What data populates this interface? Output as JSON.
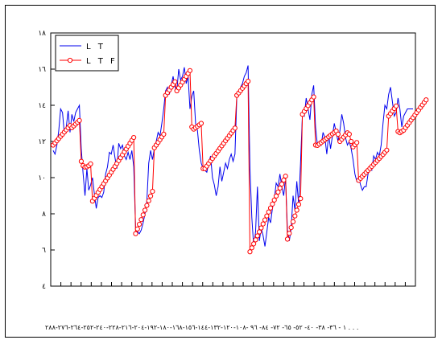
{
  "chart_data": {
    "type": "line",
    "y_tick_labels": [
      "٤",
      "٦",
      "٨",
      "١٠",
      "١٢",
      "١٤",
      "١٦",
      "١٨"
    ],
    "ylim": [
      4,
      18
    ],
    "y_ticks": [
      4,
      6,
      8,
      10,
      12,
      14,
      16,
      18
    ],
    "x_axis_caption": "١ - ٣٦- ٣٨- ٤٠- ٥٢- ٦٥- ٧٢- ٨٤- ٩٦ -١٠٨-١٢٠-١٣٢-١٤٤-١٥٦-١٦٨-١٨٠-١٩٢-٢٠٤-٢١٦-٢٢٨-٢٤٠-٢٥٢-٢٦٤-٢٧٦-٢٨٨ . . .",
    "grid": false,
    "legend_position": "top-left",
    "series": [
      {
        "name": "L T",
        "color": "#0000ee",
        "marker": "none",
        "values": [
          11.5,
          11.3,
          11.8,
          12.6,
          13.8,
          13.6,
          12.4,
          12.8,
          13.7,
          12.5,
          13.5,
          13.1,
          13.6,
          13.8,
          14.0,
          11.6,
          10.2,
          9.0,
          10.5,
          9.3,
          9.6,
          10.0,
          9.1,
          8.3,
          8.9,
          9.0,
          8.9,
          9.2,
          10.2,
          10.6,
          11.4,
          11.3,
          11.8,
          11.1,
          10.5,
          11.9,
          11.6,
          11.8,
          11.2,
          11.0,
          11.4,
          11.0,
          11.5,
          10.6,
          7.2,
          7.0,
          6.9,
          7.1,
          7.5,
          8.0,
          8.7,
          10.8,
          11.5,
          11.0,
          11.6,
          12.0,
          12.5,
          12.3,
          13.0,
          13.8,
          14.8,
          15.0,
          14.6,
          15.1,
          15.6,
          15.0,
          14.8,
          16.0,
          15.4,
          15.6,
          16.1,
          15.2,
          15.6,
          13.8,
          14.5,
          14.8,
          13.0,
          12.6,
          11.5,
          10.8,
          10.5,
          10.4,
          10.3,
          10.8,
          11.2,
          10.0,
          9.6,
          9.0,
          9.5,
          10.6,
          9.8,
          10.3,
          10.8,
          10.5,
          11.0,
          11.3,
          10.9,
          11.3,
          14.5,
          14.6,
          15.0,
          15.2,
          15.6,
          15.8,
          16.2,
          10.5,
          7.8,
          6.2,
          7.0,
          9.5,
          6.5,
          7.2,
          6.8,
          6.2,
          7.0,
          7.8,
          7.5,
          8.3,
          8.8,
          9.7,
          9.5,
          10.2,
          9.5,
          9.0,
          10.0,
          7.1,
          6.5,
          7.2,
          9.0,
          8.2,
          9.8,
          8.5,
          10.8,
          13.5,
          13.4,
          14.4,
          13.8,
          13.2,
          14.6,
          15.1,
          12.8,
          11.8,
          12.0,
          11.8,
          12.5,
          12.2,
          11.3,
          12.4,
          11.6,
          12.3,
          13.0,
          12.5,
          12.0,
          12.6,
          13.5,
          13.0,
          12.2,
          11.8,
          12.0,
          11.6,
          11.0,
          10.2,
          9.8,
          10.0,
          9.6,
          9.3,
          9.5,
          9.5,
          10.2,
          10.5,
          10.4,
          11.2,
          11.0,
          11.4,
          11.2,
          11.8,
          13.0,
          14.0,
          13.8,
          14.6,
          15.0,
          14.2,
          13.4,
          13.6,
          14.4,
          13.8,
          12.8,
          13.4,
          13.6,
          13.8,
          13.8,
          13.8,
          13.8
        ]
      },
      {
        "name": "L T F",
        "color": "#ff0000",
        "marker": "open-circle",
        "values": [
          11.8,
          11.92,
          12.04,
          12.16,
          12.28,
          12.4,
          12.52,
          12.64,
          12.76,
          12.88,
          12.76,
          12.86,
          12.96,
          13.06,
          13.16,
          10.9,
          10.66,
          10.58,
          10.6,
          10.66,
          10.76,
          8.7,
          8.86,
          9.02,
          9.18,
          9.34,
          9.5,
          9.66,
          9.82,
          9.98,
          10.14,
          10.3,
          10.46,
          10.62,
          10.78,
          10.94,
          11.1,
          11.26,
          11.42,
          11.58,
          11.74,
          11.9,
          12.06,
          12.22,
          6.9,
          7.16,
          7.42,
          7.68,
          7.94,
          8.2,
          8.46,
          8.72,
          8.98,
          9.24,
          11.65,
          11.8,
          11.95,
          12.1,
          12.25,
          12.4,
          14.55,
          14.7,
          14.85,
          15.0,
          15.15,
          15.3,
          14.8,
          14.96,
          15.12,
          15.28,
          15.44,
          15.6,
          15.76,
          15.92,
          12.8,
          12.68,
          12.76,
          12.84,
          12.92,
          13.0,
          10.5,
          10.5,
          10.64,
          10.78,
          10.92,
          11.06,
          11.2,
          11.34,
          11.48,
          11.62,
          11.76,
          11.9,
          12.04,
          12.18,
          12.32,
          12.46,
          12.6,
          12.74,
          14.55,
          14.68,
          14.81,
          14.94,
          15.07,
          15.2,
          15.33,
          5.9,
          6.12,
          6.34,
          6.56,
          6.78,
          7.0,
          7.22,
          7.44,
          7.66,
          7.88,
          8.1,
          8.32,
          8.54,
          8.76,
          8.98,
          9.2,
          9.42,
          9.64,
          9.86,
          10.08,
          6.6,
          6.92,
          7.24,
          7.56,
          7.88,
          8.2,
          8.52,
          8.84,
          13.5,
          13.66,
          13.82,
          13.98,
          14.14,
          14.3,
          14.46,
          11.8,
          11.78,
          11.86,
          11.94,
          12.02,
          12.1,
          12.18,
          12.26,
          12.34,
          12.42,
          12.5,
          12.58,
          12.4,
          12.0,
          12.12,
          12.24,
          12.36,
          12.48,
          12.4,
          12.0,
          11.7,
          11.82,
          11.94,
          9.85,
          9.96,
          10.07,
          10.18,
          10.29,
          10.4,
          10.51,
          10.62,
          10.73,
          10.84,
          10.95,
          11.06,
          11.17,
          11.28,
          11.4,
          11.52,
          13.4,
          13.54,
          13.68,
          13.82,
          13.96,
          12.55,
          12.48,
          12.55,
          12.62,
          12.76,
          12.9,
          13.04,
          13.18,
          13.32,
          13.46,
          13.6,
          13.74,
          13.88,
          14.02,
          14.16,
          14.3
        ]
      }
    ]
  }
}
